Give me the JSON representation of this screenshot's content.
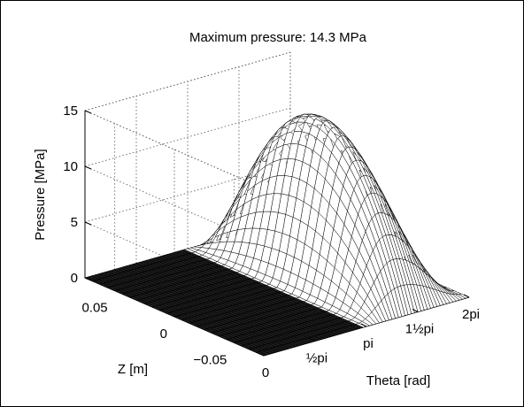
{
  "chart_data": {
    "type": "surface",
    "title": "Maximum pressure: 14.3 MPa",
    "zlabel": "Pressure [MPa]",
    "ylabel": "Z [m]",
    "xlabel": "Theta [rad]",
    "z_ticks": [
      0,
      5,
      10,
      15
    ],
    "z_tick_labels": [
      "0",
      "5",
      "10",
      "15"
    ],
    "y_ticks": [
      0.05,
      0,
      -0.05
    ],
    "y_tick_labels": [
      "0.05",
      "0",
      "−0.05"
    ],
    "x_ticks": [
      0,
      1.5708,
      3.1416,
      4.7124,
      6.2832
    ],
    "x_tick_labels": [
      "0",
      "½pi",
      "pi",
      "1½pi",
      "2pi"
    ],
    "x_range": [
      0,
      6.2832
    ],
    "y_range": [
      -0.075,
      0.075
    ],
    "z_range": [
      0,
      15
    ],
    "max_pressure": 14.3,
    "peak_theta": 4.4,
    "pressure_zero_region_theta": [
      0,
      3.1416
    ],
    "grid": true,
    "surface_color": "#000000"
  }
}
